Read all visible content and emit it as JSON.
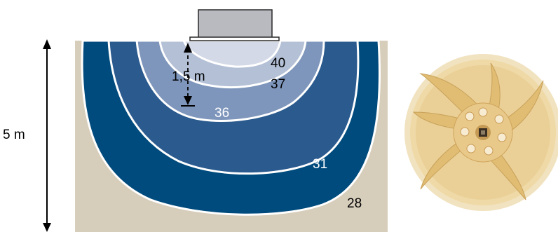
{
  "diagram": {
    "device_label": "",
    "vertical_dimension": {
      "label": "5 m"
    },
    "inner_dimension": {
      "label": "1,5 m"
    },
    "zones": [
      {
        "label": "40",
        "color": "#d3d9e6",
        "label_color": "#000000"
      },
      {
        "label": "37",
        "color": "#b3c0d6",
        "label_color": "#000000"
      },
      {
        "label": "36",
        "color": "#7e96bb",
        "label_color": "#ffffff"
      },
      {
        "label": "31",
        "color": "#2a5a8e",
        "label_color": "#ffffff"
      },
      {
        "label": "28",
        "color": "#004b7d",
        "label_color": "#000000"
      }
    ],
    "background_color": "#d7cdbb",
    "outline_color": "#ffffff"
  },
  "photo": {
    "description_icon": "fan-impeller-icon",
    "colors": {
      "rim": "#f1e2c0",
      "blade": "#e4c37a",
      "hub": "#cfa35a"
    }
  }
}
